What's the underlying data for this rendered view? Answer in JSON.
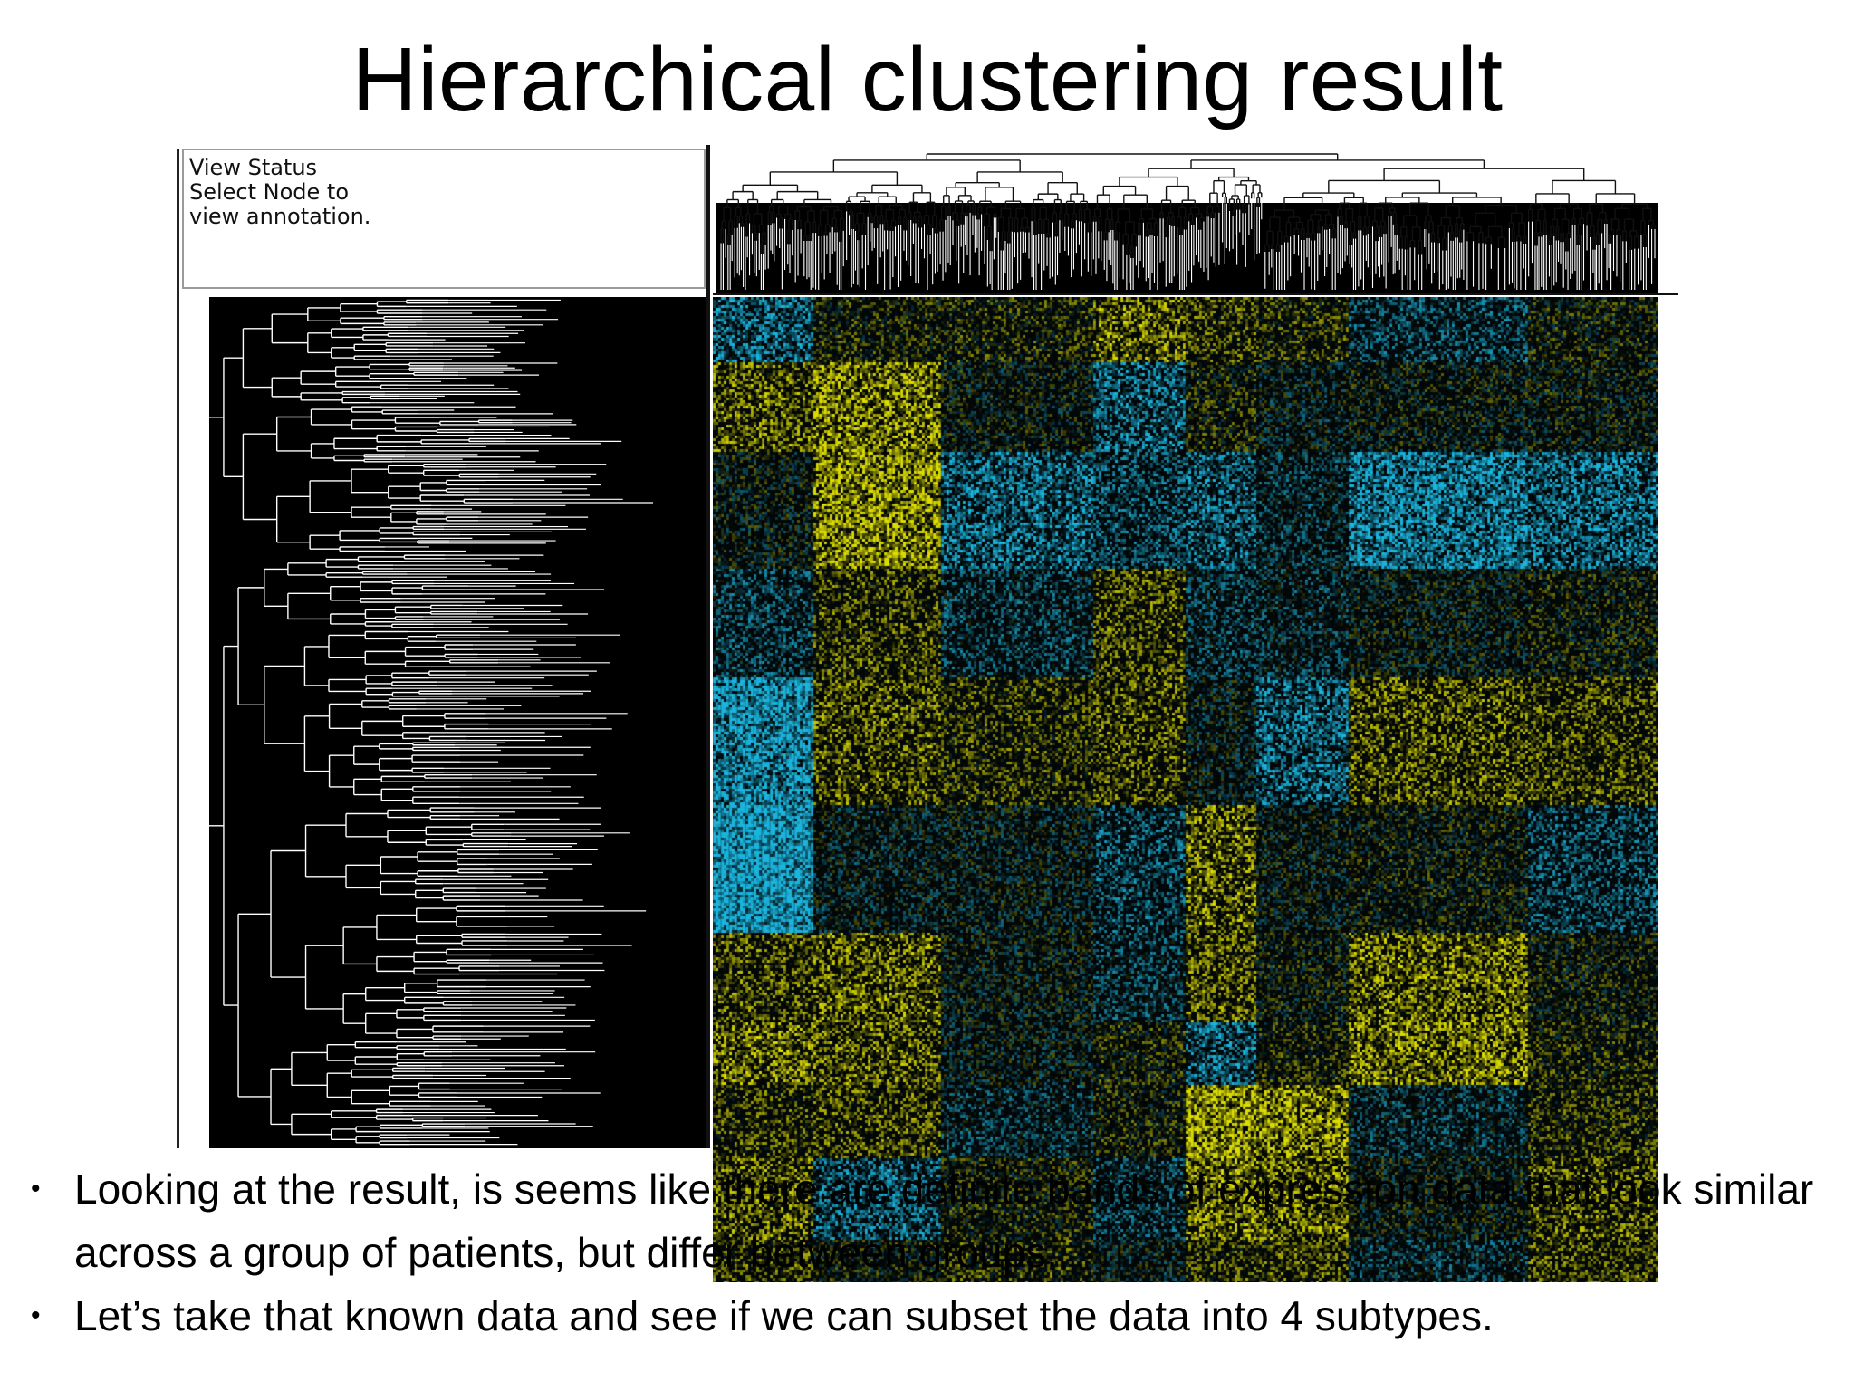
{
  "slide": {
    "title": "Hierarchical clustering result"
  },
  "viewer": {
    "status_lines": [
      "View Status",
      "Select Node to",
      "view annotation."
    ],
    "colors": {
      "high": "#f5f500",
      "low": "#1ec8f5",
      "background": "#000000"
    }
  },
  "bullets": [
    "Looking at the result, is seems like there are definite bands of expression data that look similar across a group of patients, but differ between groups.",
    "Let’s take that known data and see if we can subset the data into 4 subtypes."
  ]
}
